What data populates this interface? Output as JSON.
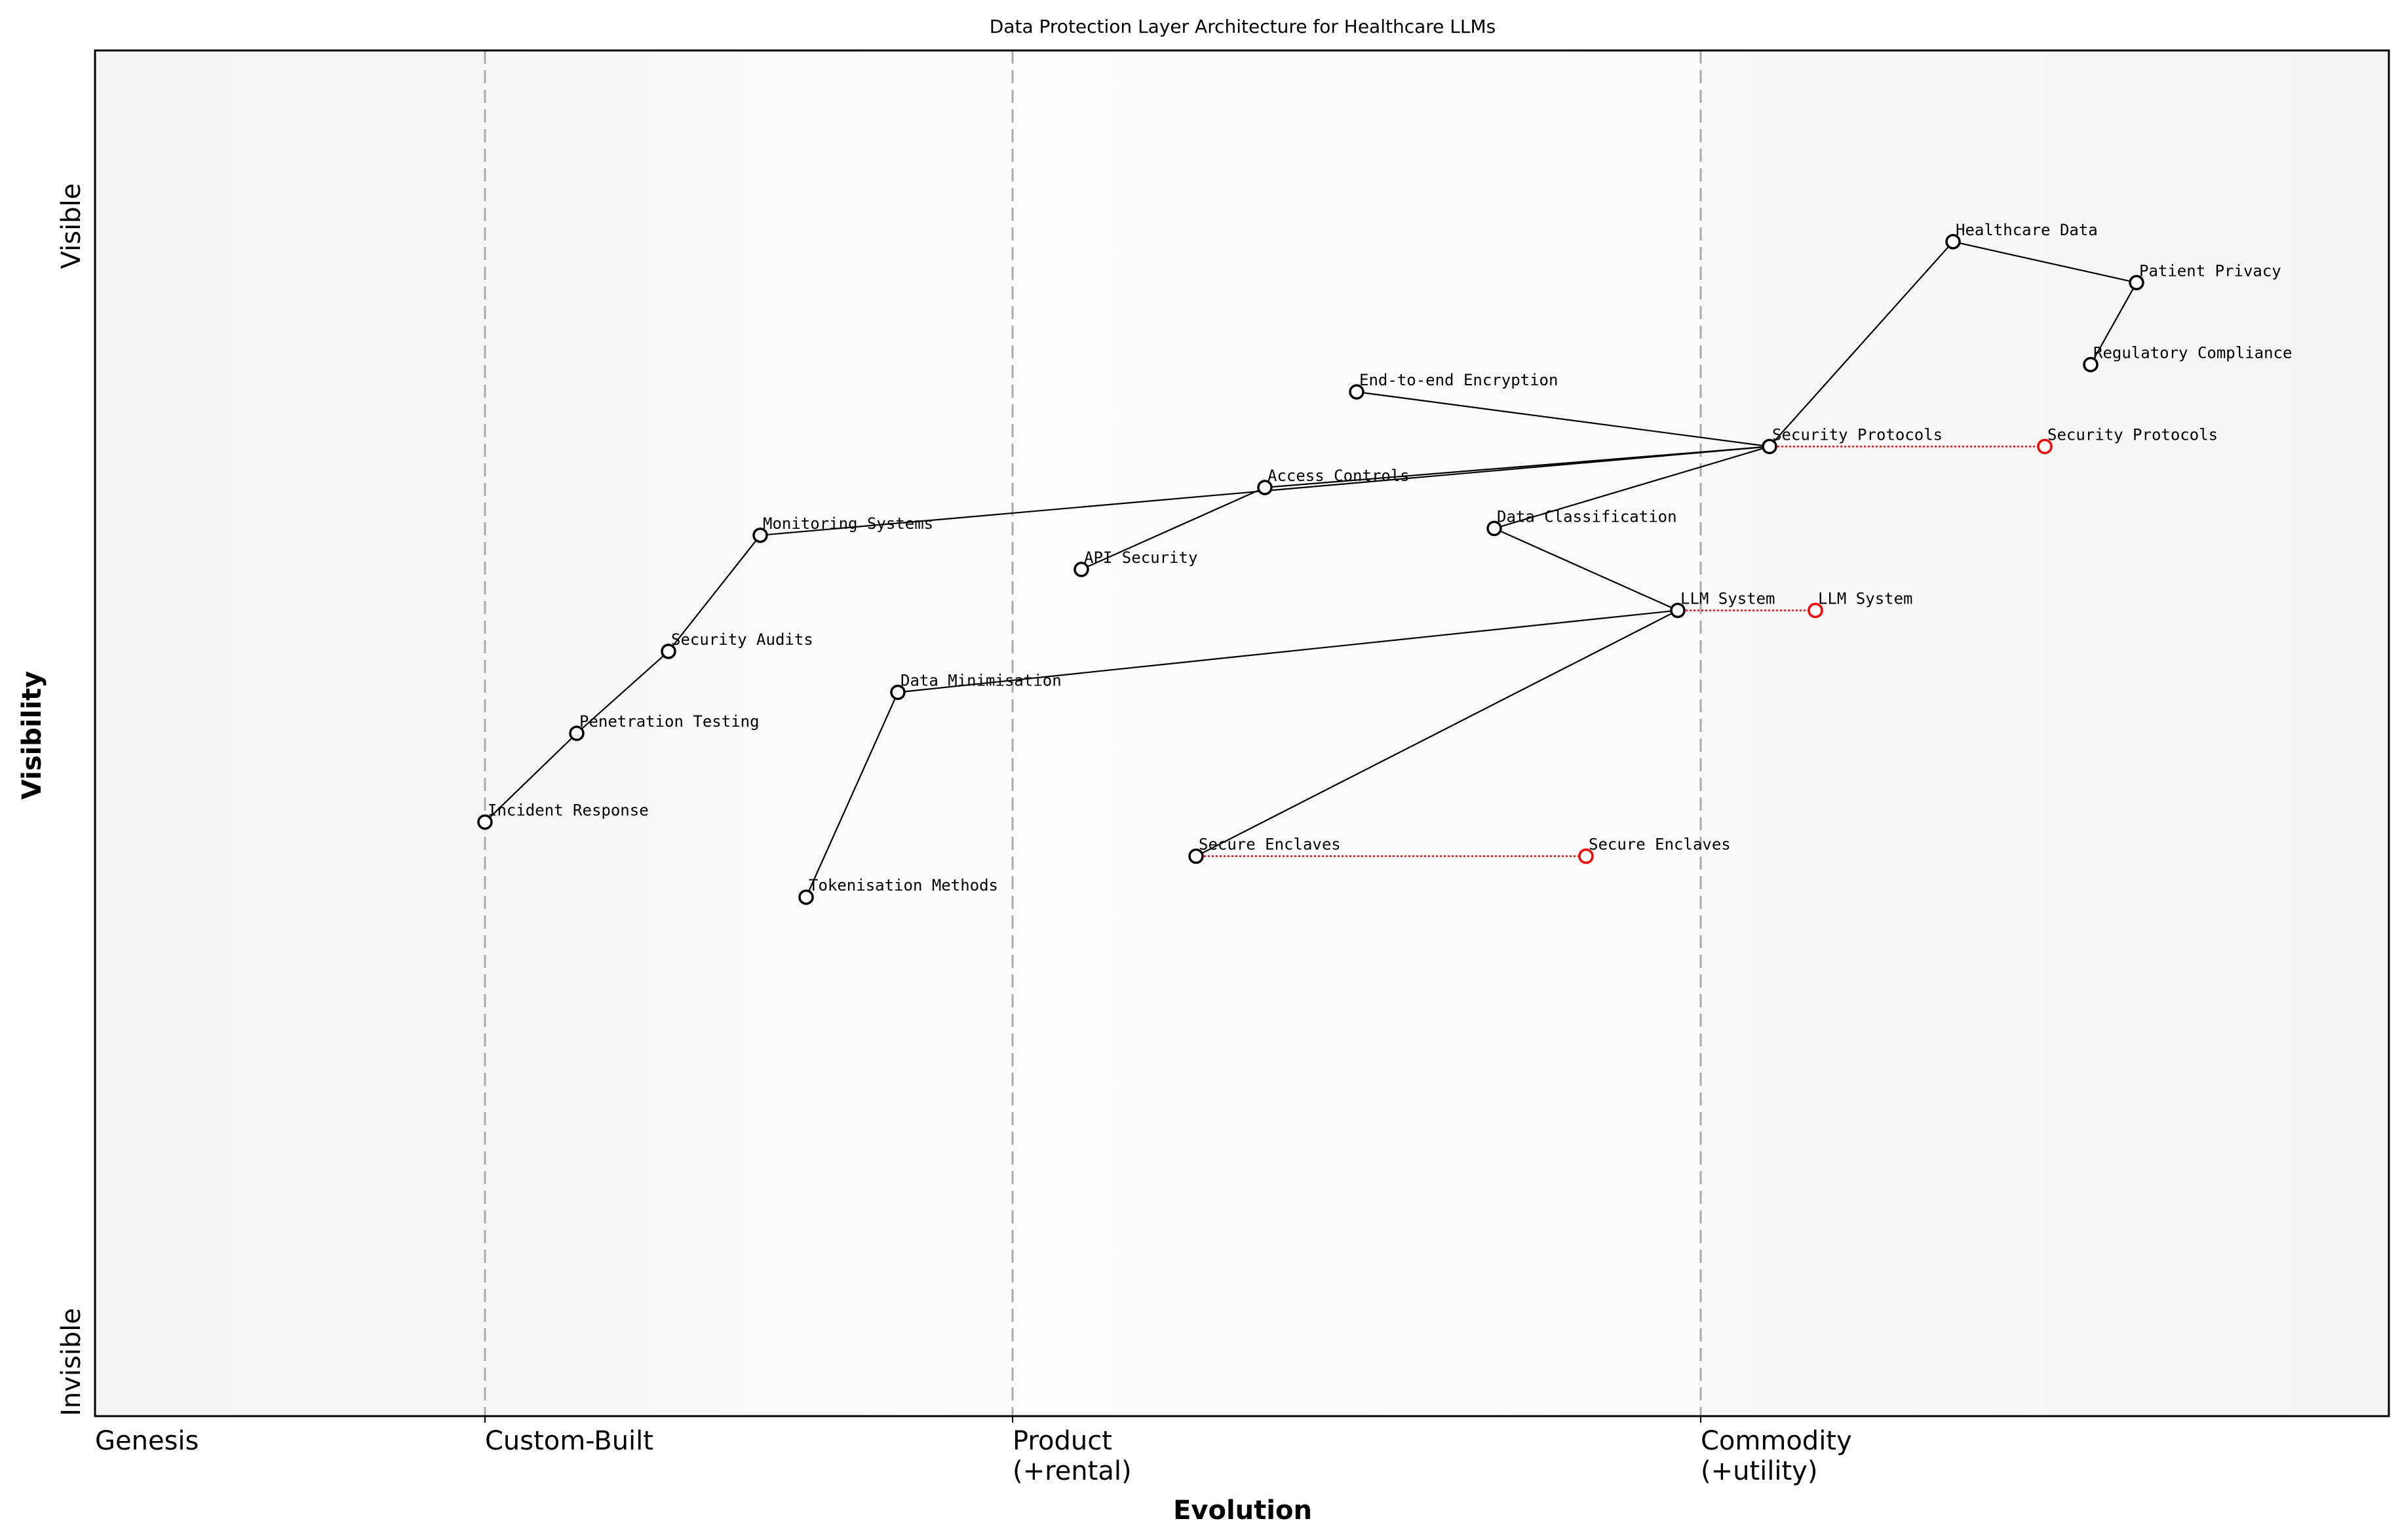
{
  "chart_data": {
    "type": "wardley-map",
    "title": "Data Protection Layer Architecture for Healthcare LLMs",
    "xlabel": "Evolution",
    "ylabel": "Visibility",
    "xlim": [
      0,
      1
    ],
    "ylim": [
      0,
      1
    ],
    "y_ticks": [
      {
        "label": "Invisible",
        "value": 0
      },
      {
        "label": "Visible",
        "value": 1
      }
    ],
    "stages": [
      {
        "label": "Genesis",
        "start": 0
      },
      {
        "label": "Custom-Built",
        "start": 0.17
      },
      {
        "label": "Product\n(+rental)",
        "start": 0.4
      },
      {
        "label": "Commodity\n(+utility)",
        "start": 0.7
      }
    ],
    "components": [
      {
        "name": "Healthcare Data",
        "evolution": 0.81,
        "visibility": 0.86
      },
      {
        "name": "Patient Privacy",
        "evolution": 0.89,
        "visibility": 0.83
      },
      {
        "name": "Regulatory Compliance",
        "evolution": 0.87,
        "visibility": 0.77
      },
      {
        "name": "End-to-end Encryption",
        "evolution": 0.55,
        "visibility": 0.75
      },
      {
        "name": "Security Protocols",
        "evolution": 0.73,
        "visibility": 0.71
      },
      {
        "name": "Access Controls",
        "evolution": 0.51,
        "visibility": 0.68
      },
      {
        "name": "Data Classification",
        "evolution": 0.61,
        "visibility": 0.65
      },
      {
        "name": "Monitoring Systems",
        "evolution": 0.29,
        "visibility": 0.645
      },
      {
        "name": "API Security",
        "evolution": 0.43,
        "visibility": 0.62
      },
      {
        "name": "LLM System",
        "evolution": 0.69,
        "visibility": 0.59
      },
      {
        "name": "Security Audits",
        "evolution": 0.25,
        "visibility": 0.56
      },
      {
        "name": "Data Minimisation",
        "evolution": 0.35,
        "visibility": 0.53
      },
      {
        "name": "Penetration Testing",
        "evolution": 0.21,
        "visibility": 0.5
      },
      {
        "name": "Incident Response",
        "evolution": 0.17,
        "visibility": 0.435
      },
      {
        "name": "Secure Enclaves",
        "evolution": 0.48,
        "visibility": 0.41
      },
      {
        "name": "Tokenisation Methods",
        "evolution": 0.31,
        "visibility": 0.38
      }
    ],
    "links": [
      [
        "Healthcare Data",
        "Patient Privacy"
      ],
      [
        "Patient Privacy",
        "Regulatory Compliance"
      ],
      [
        "Healthcare Data",
        "Security Protocols"
      ],
      [
        "End-to-end Encryption",
        "Security Protocols"
      ],
      [
        "Access Controls",
        "Security Protocols"
      ],
      [
        "Monitoring Systems",
        "Security Protocols"
      ],
      [
        "Data Classification",
        "Security Protocols"
      ],
      [
        "Data Classification",
        "LLM System"
      ],
      [
        "API Security",
        "Access Controls"
      ],
      [
        "LLM System",
        "Data Minimisation"
      ],
      [
        "LLM System",
        "Secure Enclaves"
      ],
      [
        "Data Minimisation",
        "Tokenisation Methods"
      ],
      [
        "Monitoring Systems",
        "Security Audits"
      ],
      [
        "Security Audits",
        "Penetration Testing"
      ],
      [
        "Penetration Testing",
        "Incident Response"
      ]
    ],
    "evolutions": [
      {
        "name": "Security Protocols",
        "from": 0.73,
        "to": 0.85,
        "visibility": 0.71
      },
      {
        "name": "LLM System",
        "from": 0.69,
        "to": 0.75,
        "visibility": 0.59
      },
      {
        "name": "Secure Enclaves",
        "from": 0.48,
        "to": 0.65,
        "visibility": 0.41
      }
    ],
    "colors": {
      "component": "#000000",
      "evolved": "#ff0000",
      "stage_line": "#aaaaaa",
      "band_dark": "#f4f4f4",
      "band_light": "#fefefe"
    }
  }
}
